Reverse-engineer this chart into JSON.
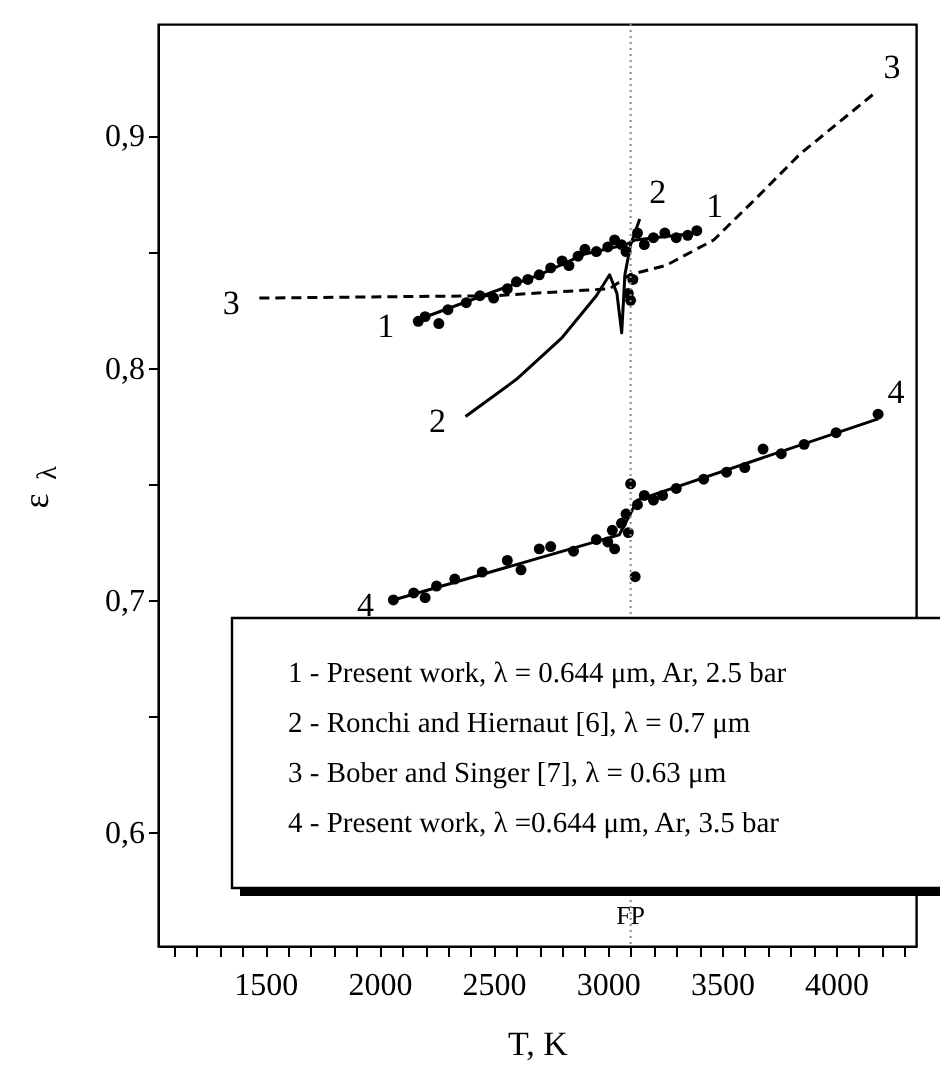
{
  "chart_data": {
    "type": "line",
    "xlabel": "T, K",
    "ylabel": "ε$_{λ}$",
    "xlim": [
      1030,
      4350
    ],
    "ylim": [
      0.551,
      0.948
    ],
    "xticks": [
      {
        "value": 1100,
        "label": null
      },
      {
        "value": 1200,
        "label": null
      },
      {
        "value": 1300,
        "label": null
      },
      {
        "value": 1400,
        "label": null
      },
      1500,
      {
        "value": 1600,
        "label": null
      },
      {
        "value": 1700,
        "label": null
      },
      {
        "value": 1800,
        "label": null
      },
      {
        "value": 1900,
        "label": null
      },
      2000,
      {
        "value": 2100,
        "label": null
      },
      {
        "value": 2200,
        "label": null
      },
      {
        "value": 2300,
        "label": null
      },
      {
        "value": 2400,
        "label": null
      },
      2500,
      {
        "value": 2600,
        "label": null
      },
      {
        "value": 2700,
        "label": null
      },
      {
        "value": 2800,
        "label": null
      },
      {
        "value": 2900,
        "label": null
      },
      3000,
      {
        "value": 3100,
        "label": null
      },
      {
        "value": 3200,
        "label": null
      },
      {
        "value": 3300,
        "label": null
      },
      {
        "value": 3400,
        "label": null
      },
      3500,
      {
        "value": 3600,
        "label": null
      },
      {
        "value": 3700,
        "label": null
      },
      {
        "value": 3800,
        "label": null
      },
      {
        "value": 3900,
        "label": null
      },
      4000,
      {
        "value": 4100,
        "label": null
      },
      {
        "value": 4200,
        "label": null
      },
      {
        "value": 4300,
        "label": null
      }
    ],
    "yticks": [
      {
        "value": 0.6,
        "label": "0,6"
      },
      {
        "value": 0.65,
        "label": null
      },
      {
        "value": 0.7,
        "label": "0,7"
      },
      {
        "value": 0.75,
        "label": null
      },
      {
        "value": 0.8,
        "label": "0,8"
      },
      {
        "value": 0.85,
        "label": null
      },
      {
        "value": 0.9,
        "label": "0,9"
      }
    ],
    "grid": false,
    "series": [
      {
        "type": "scatter",
        "color": "#000000",
        "marker": "circle",
        "x": [
          2170,
          2200,
          2260,
          2300,
          2380,
          2440,
          2500,
          2560,
          2600,
          2650,
          2700,
          2750,
          2800,
          2830,
          2870,
          2900,
          2950,
          3000,
          3030,
          3060,
          3080,
          3090,
          3100,
          3110,
          3130,
          3160,
          3200,
          3250,
          3300,
          3350,
          3390
        ],
        "values": [
          0.82,
          0.822,
          0.819,
          0.825,
          0.828,
          0.831,
          0.83,
          0.834,
          0.837,
          0.838,
          0.84,
          0.843,
          0.846,
          0.844,
          0.848,
          0.851,
          0.85,
          0.852,
          0.855,
          0.853,
          0.85,
          0.832,
          0.829,
          0.838,
          0.858,
          0.853,
          0.856,
          0.858,
          0.856,
          0.857,
          0.859
        ]
      },
      {
        "color": "#000000",
        "line_style": "solid",
        "x": [
          2150,
          2700,
          2900,
          3080,
          3120,
          3390
        ],
        "values": [
          0.82,
          0.84,
          0.849,
          0.853,
          0.855,
          0.858
        ]
      },
      {
        "color": "#000000",
        "line_style": "solid",
        "x": [
          2377,
          2600,
          2800,
          2950,
          3008,
          3040,
          3061,
          3075,
          3100,
          3140
        ],
        "values": [
          0.779,
          0.795,
          0.813,
          0.831,
          0.84,
          0.832,
          0.815,
          0.84,
          0.853,
          0.864
        ]
      },
      {
        "color": "#000000",
        "line_style": "dashed",
        "x": [
          1474,
          2500,
          3008,
          3096,
          3254,
          3464,
          3640,
          3842,
          4166
        ],
        "values": [
          0.83,
          0.831,
          0.834,
          0.84,
          0.844,
          0.855,
          0.872,
          0.892,
          0.918
        ]
      },
      {
        "type": "scatter",
        "color": "#000000",
        "marker": "circle",
        "x": [
          2061,
          2150,
          2200,
          2250,
          2330,
          2450,
          2560,
          2620,
          2700,
          2750,
          2850,
          2950,
          3000,
          3020,
          3030,
          3060,
          3080,
          3090,
          3120,
          3100,
          3130,
          3160,
          3200,
          3240,
          3300,
          3420,
          3520,
          3600,
          3680,
          3760,
          3860,
          4000,
          4184
        ],
        "values": [
          0.7,
          0.703,
          0.701,
          0.706,
          0.709,
          0.712,
          0.717,
          0.713,
          0.722,
          0.723,
          0.721,
          0.726,
          0.725,
          0.73,
          0.722,
          0.733,
          0.737,
          0.729,
          0.71,
          0.75,
          0.741,
          0.745,
          0.743,
          0.745,
          0.748,
          0.752,
          0.755,
          0.757,
          0.765,
          0.763,
          0.767,
          0.772,
          0.78
        ]
      },
      {
        "color": "#000000",
        "line_style": "solid",
        "x": [
          2061,
          3050,
          3130,
          4184
        ],
        "values": [
          0.7,
          0.728,
          0.743,
          0.778
        ]
      }
    ],
    "ref_lines": [
      {
        "axis": "x",
        "value": 3100,
        "label": "FP",
        "color": "#888888",
        "line_style": "dotted"
      }
    ],
    "annotations": [
      {
        "text": "1",
        "x": 2150,
        "y": 0.82
      },
      {
        "text": "1",
        "x": 3390,
        "y": 0.858
      },
      {
        "text": "2",
        "x": 2377,
        "y": 0.779
      },
      {
        "text": "2",
        "x": 3140,
        "y": 0.864
      },
      {
        "text": "3",
        "x": 1474,
        "y": 0.83
      },
      {
        "text": "3",
        "x": 4166,
        "y": 0.918
      },
      {
        "text": "4",
        "x": 2061,
        "y": 0.7
      },
      {
        "text": "4",
        "x": 4184,
        "y": 0.778
      },
      "1 - Present work, λ = 0.644 μm, Ar, 2.5 bar",
      "2 - Ronchi and Hiernaut [6], λ = 0.7 μm",
      "3 - Bober and Singer [7], λ = 0.63 μm",
      "4 - Present work, λ =0.644 μm, Ar, 3.5 bar"
    ]
  }
}
